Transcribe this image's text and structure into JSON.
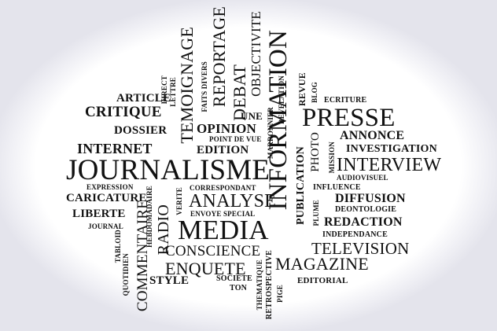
{
  "words": {
    "journalisme": "JOURNALISME",
    "information": "INFORMATION",
    "media": "MEDIA",
    "presse": "PRESSE",
    "interview": "INTERVIEW",
    "reportage": "REPORTAGE",
    "temoignage": "TEMOIGNAGE",
    "debat": "DEBAT",
    "critique": "CRITIQUE",
    "internet": "INTERNET",
    "analyse": "ANALYSE",
    "enquete": "ENQUETE",
    "magazine": "MAGAZINE",
    "television": "TELEVISION",
    "commentaire": "COMMENTAIRE",
    "radio": "RADIO",
    "conscience": "CONSCIENCE",
    "objectivite": "OBJECTIVITE",
    "article": "ARTICLE",
    "dossier": "DOSSIER",
    "caricature": "CARICATURE",
    "liberte": "LIBERTE",
    "style": "STYLE",
    "opinion": "OPINION",
    "edition": "EDITION",
    "une": "UNE",
    "revue": "REVUE",
    "photo": "PHOTO",
    "publication": "PUBLICATION",
    "annonce": "ANNONCE",
    "investigation": "INVESTIGATION",
    "diffusion": "DIFFUSION",
    "redaction": "REDACTION",
    "ecriture": "ECRITURE",
    "blog": "BLOG",
    "direct": "DIRECT",
    "lettre": "LETTRE",
    "faits_divers": "FAITS DIVERS",
    "marronnier": "MARRONNIER",
    "revelation": "REVELATION",
    "point_de_vue": "POINT DE VUE",
    "expression": "EXPRESSION",
    "hebdomadaire": "HEBDOMADAIRE",
    "verite": "VERITE",
    "correspondant": "CORRESPONDANT",
    "envoye_special": "ENVOYE SPECIAL",
    "journal": "JOURNAL",
    "tabloid": "TABLOID",
    "quotidien": "QUOTIDIEN",
    "societe": "SOCIETE",
    "ton": "TON",
    "thematique": "THEMATIQUE",
    "retrospective": "RETROSPECTIVE",
    "pige": "PIGE",
    "editorial": "EDITORIAL",
    "mission": "MISSION",
    "audiovisuel": "AUDIOVISUEL",
    "influence": "INFLUENCE",
    "plume": "PLUME",
    "deontologie": "DEONTOLOGIE",
    "independance": "INDEPENDANCE"
  }
}
